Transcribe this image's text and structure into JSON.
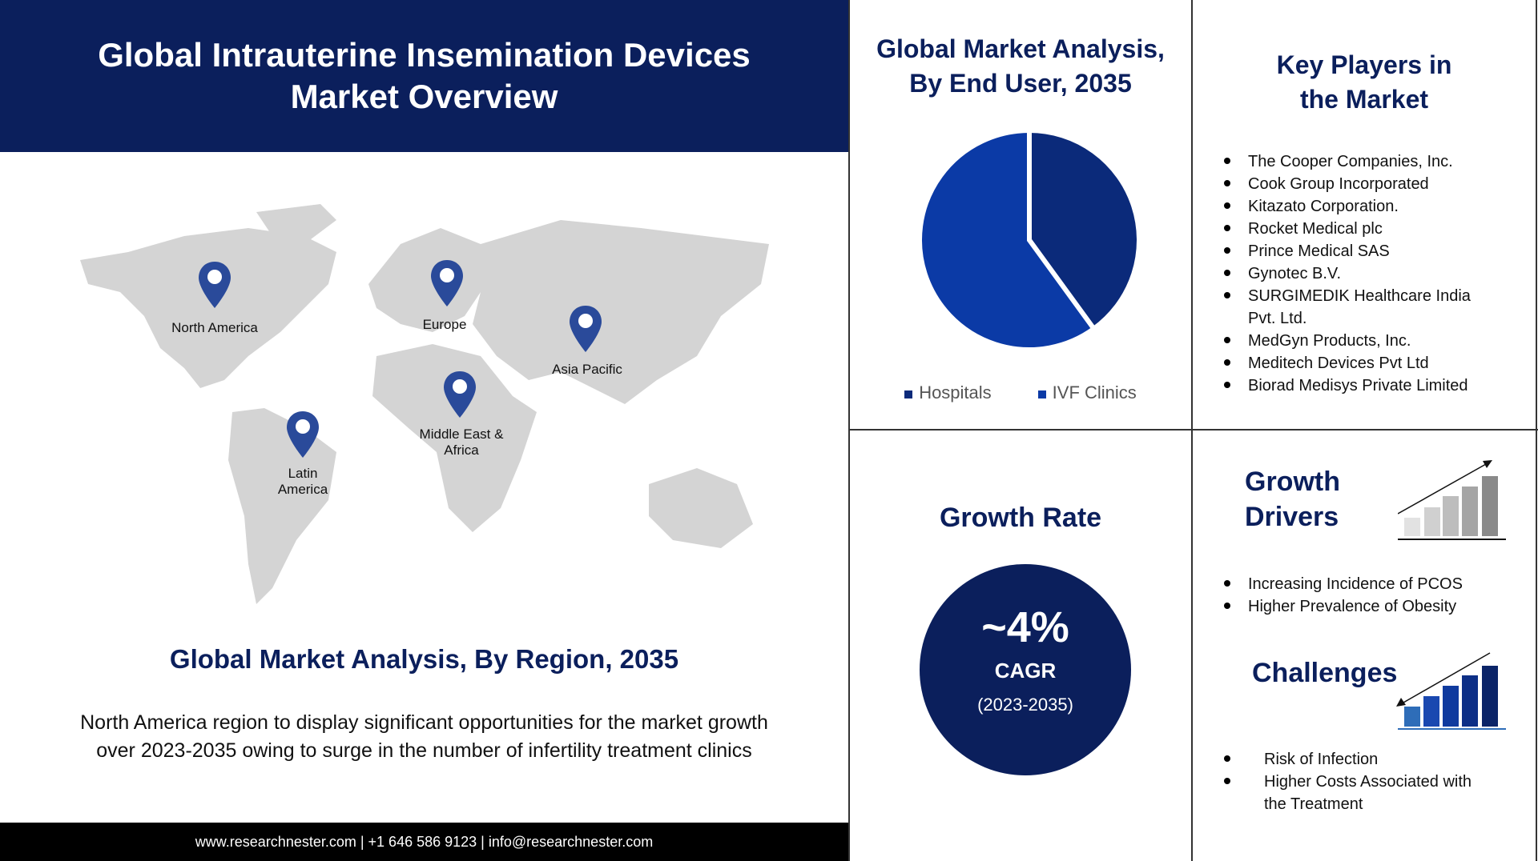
{
  "header": {
    "title_line1": "Global Intrauterine Insemination Devices",
    "title_line2": "Market Overview"
  },
  "map": {
    "regions": [
      "North America",
      "Europe",
      "Asia Pacific",
      "Middle East & Africa",
      "Latin America"
    ],
    "pin_color": "#2a4a9a",
    "land_color": "#d4d4d4"
  },
  "region": {
    "title": "Global Market Analysis, By Region, 2035",
    "text_line1": "North America region to display significant opportunities for the market growth",
    "text_line2": "over 2023-2035  owing to surge in the number of infertility treatment clinics"
  },
  "footer": {
    "text": "www.researchnester.com  | +1 646 586 9123 | info@researchnester.com"
  },
  "end_user": {
    "title_line1": "Global Market Analysis,",
    "title_line2": "By End User, 2035"
  },
  "chart_data": {
    "type": "pie",
    "categories": [
      "Hospitals",
      "IVF Clinics"
    ],
    "values": [
      40,
      60
    ],
    "colors": [
      "#0b2a7a",
      "#0b3aa6"
    ],
    "legend": "bottom"
  },
  "key_players": {
    "title_line1": "Key Players in",
    "title_line2": "the Market",
    "items": [
      "The Cooper Companies, Inc.",
      "Cook Group Incorporated",
      "Kitazato Corporation.",
      "Rocket Medical  plc",
      "Prince Medical  SAS",
      "Gynotec B.V.",
      "SURGIMEDIK Healthcare  India Pvt. Ltd.",
      "MedGyn Products, Inc.",
      "Meditech Devices Pvt Ltd",
      "Biorad  Medisys Private Limited"
    ]
  },
  "growth_rate": {
    "title": "Growth Rate",
    "value": "~4%",
    "label": "CAGR",
    "period": "(2023-2035)"
  },
  "drivers": {
    "title_line1": "Growth",
    "title_line2": "Drivers",
    "items": [
      "Increasing Incidence  of PCOS",
      "Higher Prevalence of Obesity"
    ]
  },
  "challenges": {
    "title": "Challenges",
    "items": [
      "Risk of Infection",
      "Higher Costs Associated with the Treatment"
    ]
  }
}
